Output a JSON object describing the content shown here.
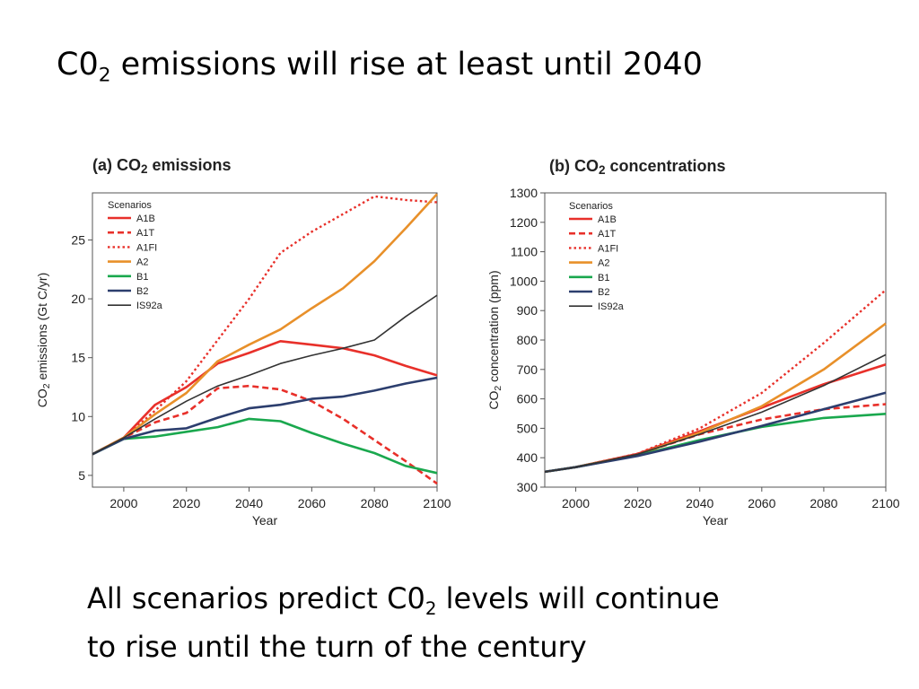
{
  "slide": {
    "title_prefix": "C0",
    "title_sub": "2",
    "title_suffix": " emissions will rise at least until 2040",
    "body_line1_prefix": "All scenarios predict C0",
    "body_line1_sub": "2",
    "body_line1_suffix": " levels will continue",
    "body_line2": "to rise until the turn of the century"
  },
  "chart_data": [
    {
      "type": "line",
      "title_prefix": "(a) CO",
      "title_sub": "2",
      "title_suffix": " emissions",
      "xlabel": "Year",
      "ylabel_prefix": "CO",
      "ylabel_sub": "2",
      "ylabel_suffix": " emissions (Gt C/yr)",
      "xlim": [
        1990,
        2100
      ],
      "ylim": [
        4,
        29
      ],
      "xticks": [
        "2000",
        "2020",
        "2040",
        "2060",
        "2080",
        "2100"
      ],
      "yticks": [
        "5",
        "10",
        "15",
        "20",
        "25"
      ],
      "legend_title": "Scenarios",
      "legend_position": "top-left",
      "series": [
        {
          "name": "A1B",
          "color": "#e8302a",
          "dash": "solid",
          "width": 2.6,
          "points": [
            [
              1990,
              6.8
            ],
            [
              2000,
              8.2
            ],
            [
              2010,
              11
            ],
            [
              2020,
              12.5
            ],
            [
              2030,
              14.5
            ],
            [
              2040,
              15.4
            ],
            [
              2050,
              16.4
            ],
            [
              2060,
              16.1
            ],
            [
              2070,
              15.8
            ],
            [
              2080,
              15.2
            ],
            [
              2090,
              14.3
            ],
            [
              2100,
              13.5
            ]
          ]
        },
        {
          "name": "A1T",
          "color": "#e8302a",
          "dash": "dashed",
          "width": 2.6,
          "points": [
            [
              1990,
              6.8
            ],
            [
              2000,
              8.2
            ],
            [
              2010,
              9.5
            ],
            [
              2020,
              10.3
            ],
            [
              2030,
              12.4
            ],
            [
              2040,
              12.6
            ],
            [
              2050,
              12.3
            ],
            [
              2060,
              11.3
            ],
            [
              2070,
              9.8
            ],
            [
              2080,
              8
            ],
            [
              2090,
              6.2
            ],
            [
              2100,
              4.3
            ]
          ]
        },
        {
          "name": "A1FI",
          "color": "#e8302a",
          "dash": "dotted",
          "width": 2.4,
          "points": [
            [
              1990,
              6.8
            ],
            [
              2000,
              8.2
            ],
            [
              2010,
              10.5
            ],
            [
              2020,
              13
            ],
            [
              2030,
              16.5
            ],
            [
              2040,
              20
            ],
            [
              2050,
              23.9
            ],
            [
              2060,
              25.7
            ],
            [
              2070,
              27.2
            ],
            [
              2080,
              28.7
            ],
            [
              2090,
              28.4
            ],
            [
              2100,
              28.2
            ]
          ]
        },
        {
          "name": "A2",
          "color": "#e8902a",
          "dash": "solid",
          "width": 2.6,
          "points": [
            [
              1990,
              6.8
            ],
            [
              2000,
              8.2
            ],
            [
              2010,
              10.2
            ],
            [
              2020,
              12
            ],
            [
              2030,
              14.7
            ],
            [
              2040,
              16.1
            ],
            [
              2050,
              17.4
            ],
            [
              2060,
              19.2
            ],
            [
              2070,
              20.9
            ],
            [
              2080,
              23.2
            ],
            [
              2090,
              26
            ],
            [
              2100,
              28.9
            ]
          ]
        },
        {
          "name": "B1",
          "color": "#1aa84e",
          "dash": "solid",
          "width": 2.6,
          "points": [
            [
              1990,
              6.8
            ],
            [
              2000,
              8.1
            ],
            [
              2010,
              8.3
            ],
            [
              2020,
              8.7
            ],
            [
              2030,
              9.1
            ],
            [
              2040,
              9.8
            ],
            [
              2050,
              9.6
            ],
            [
              2060,
              8.6
            ],
            [
              2070,
              7.7
            ],
            [
              2080,
              6.9
            ],
            [
              2090,
              5.8
            ],
            [
              2100,
              5.2
            ]
          ]
        },
        {
          "name": "B2",
          "color": "#2c3e6e",
          "dash": "solid",
          "width": 2.6,
          "points": [
            [
              1990,
              6.8
            ],
            [
              2000,
              8.1
            ],
            [
              2010,
              8.8
            ],
            [
              2020,
              9
            ],
            [
              2030,
              9.9
            ],
            [
              2040,
              10.7
            ],
            [
              2050,
              11
            ],
            [
              2060,
              11.5
            ],
            [
              2070,
              11.7
            ],
            [
              2080,
              12.2
            ],
            [
              2090,
              12.8
            ],
            [
              2100,
              13.3
            ]
          ]
        },
        {
          "name": "IS92a",
          "color": "#333333",
          "dash": "solid",
          "width": 1.6,
          "points": [
            [
              1990,
              6.8
            ],
            [
              2000,
              8.2
            ],
            [
              2010,
              9.8
            ],
            [
              2020,
              11.3
            ],
            [
              2030,
              12.6
            ],
            [
              2040,
              13.5
            ],
            [
              2050,
              14.5
            ],
            [
              2060,
              15.2
            ],
            [
              2070,
              15.8
            ],
            [
              2080,
              16.5
            ],
            [
              2090,
              18.5
            ],
            [
              2100,
              20.3
            ]
          ]
        }
      ]
    },
    {
      "type": "line",
      "title_prefix": "(b) CO",
      "title_sub": "2",
      "title_suffix": " concentrations",
      "xlabel": "Year",
      "ylabel_prefix": "CO",
      "ylabel_sub": "2",
      "ylabel_suffix": " concentration (ppm)",
      "xlim": [
        1990,
        2100
      ],
      "ylim": [
        300,
        1300
      ],
      "xticks": [
        "2000",
        "2020",
        "2040",
        "2060",
        "2080",
        "2100"
      ],
      "yticks": [
        "300",
        "400",
        "500",
        "600",
        "700",
        "800",
        "900",
        "1000",
        "1100",
        "1200",
        "1300"
      ],
      "legend_title": "Scenarios",
      "legend_position": "top-left",
      "series": [
        {
          "name": "A1B",
          "color": "#e8302a",
          "dash": "solid",
          "width": 2.6,
          "points": [
            [
              1990,
              352
            ],
            [
              2000,
              368
            ],
            [
              2020,
              413
            ],
            [
              2040,
              490
            ],
            [
              2060,
              570
            ],
            [
              2080,
              650
            ],
            [
              2100,
              717
            ]
          ]
        },
        {
          "name": "A1T",
          "color": "#e8302a",
          "dash": "dashed",
          "width": 2.6,
          "points": [
            [
              1990,
              352
            ],
            [
              2000,
              368
            ],
            [
              2020,
              412
            ],
            [
              2040,
              480
            ],
            [
              2060,
              530
            ],
            [
              2080,
              565
            ],
            [
              2100,
              582
            ]
          ]
        },
        {
          "name": "A1FI",
          "color": "#e8302a",
          "dash": "dotted",
          "width": 2.4,
          "points": [
            [
              1990,
              352
            ],
            [
              2000,
              368
            ],
            [
              2020,
              414
            ],
            [
              2040,
              500
            ],
            [
              2060,
              620
            ],
            [
              2080,
              790
            ],
            [
              2100,
              970
            ]
          ]
        },
        {
          "name": "A2",
          "color": "#e8902a",
          "dash": "solid",
          "width": 2.6,
          "points": [
            [
              1990,
              352
            ],
            [
              2000,
              368
            ],
            [
              2020,
              410
            ],
            [
              2040,
              485
            ],
            [
              2060,
              575
            ],
            [
              2080,
              700
            ],
            [
              2100,
              856
            ]
          ]
        },
        {
          "name": "B1",
          "color": "#1aa84e",
          "dash": "solid",
          "width": 2.6,
          "points": [
            [
              1990,
              352
            ],
            [
              2000,
              368
            ],
            [
              2020,
              408
            ],
            [
              2040,
              460
            ],
            [
              2060,
              505
            ],
            [
              2080,
              535
            ],
            [
              2100,
              549
            ]
          ]
        },
        {
          "name": "B2",
          "color": "#2c3e6e",
          "dash": "solid",
          "width": 2.6,
          "points": [
            [
              1990,
              352
            ],
            [
              2000,
              368
            ],
            [
              2020,
              406
            ],
            [
              2040,
              455
            ],
            [
              2060,
              508
            ],
            [
              2080,
              565
            ],
            [
              2100,
              621
            ]
          ]
        },
        {
          "name": "IS92a",
          "color": "#333333",
          "dash": "solid",
          "width": 1.6,
          "points": [
            [
              1990,
              352
            ],
            [
              2000,
              368
            ],
            [
              2020,
              412
            ],
            [
              2040,
              480
            ],
            [
              2060,
              555
            ],
            [
              2080,
              645
            ],
            [
              2100,
              750
            ]
          ]
        }
      ]
    }
  ]
}
